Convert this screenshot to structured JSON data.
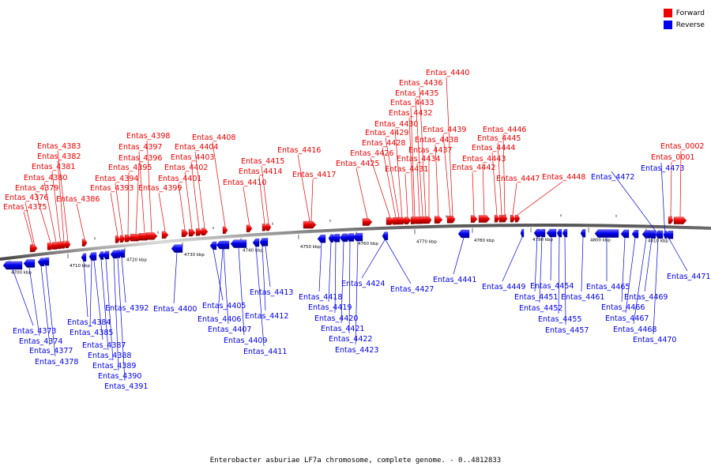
{
  "legend": {
    "forward": {
      "label": "Forward",
      "color": "#ee0000"
    },
    "reverse": {
      "label": "Reverse",
      "color": "#0000ee"
    }
  },
  "caption": "Enterobacter asburiae LF7a chromosome, complete genome. - 0..4812833",
  "axis": {
    "ticks": [
      "4700 kbp",
      "4710 kbp",
      "4720 kbp",
      "4730 kbp",
      "4740 kbp",
      "4750 kbp",
      "4760 kbp",
      "4770 kbp",
      "4780 kbp",
      "4790 kbp",
      "4800 kbp",
      "4810 kbp"
    ]
  },
  "forward_genes": [
    "Entas_4375",
    "Entas_4376",
    "Entas_4379",
    "Entas_4380",
    "Entas_4381",
    "Entas_4382",
    "Entas_4383",
    "Entas_4386",
    "Entas_4393",
    "Entas_4394",
    "Entas_4395",
    "Entas_4396",
    "Entas_4397",
    "Entas_4398",
    "Entas_4399",
    "Entas_4401",
    "Entas_4402",
    "Entas_4403",
    "Entas_4404",
    "Entas_4408",
    "Entas_4410",
    "Entas_4414",
    "Entas_4415",
    "Entas_4416",
    "Entas_4417",
    "Entas_4425",
    "Entas_4426",
    "Entas_4428",
    "Entas_4429",
    "Entas_4430",
    "Entas_4431",
    "Entas_4432",
    "Entas_4433",
    "Entas_4434",
    "Entas_4435",
    "Entas_4436",
    "Entas_4437",
    "Entas_4438",
    "Entas_4439",
    "Entas_4440",
    "Entas_4442",
    "Entas_4443",
    "Entas_4444",
    "Entas_4445",
    "Entas_4446",
    "Entas_4447",
    "Entas_4448",
    "Entas_0001",
    "Entas_0002"
  ],
  "reverse_genes": [
    "Entas_4373",
    "Entas_4374",
    "Entas_4377",
    "Entas_4378",
    "Entas_4384",
    "Entas_4385",
    "Entas_4387",
    "Entas_4388",
    "Entas_4389",
    "Entas_4390",
    "Entas_4391",
    "Entas_4392",
    "Entas_4400",
    "Entas_4405",
    "Entas_4406",
    "Entas_4407",
    "Entas_4409",
    "Entas_4411",
    "Entas_4412",
    "Entas_4413",
    "Entas_4418",
    "Entas_4419",
    "Entas_4420",
    "Entas_4421",
    "Entas_4422",
    "Entas_4423",
    "Entas_4424",
    "Entas_4427",
    "Entas_4441",
    "Entas_4449",
    "Entas_4451",
    "Entas_4452",
    "Entas_4454",
    "Entas_4455",
    "Entas_4457",
    "Entas_4461",
    "Entas_4465",
    "Entas_4466",
    "Entas_4467",
    "Entas_4468",
    "Entas_4469",
    "Entas_4470",
    "Entas_4471",
    "Entas_4472",
    "Entas_4473"
  ]
}
